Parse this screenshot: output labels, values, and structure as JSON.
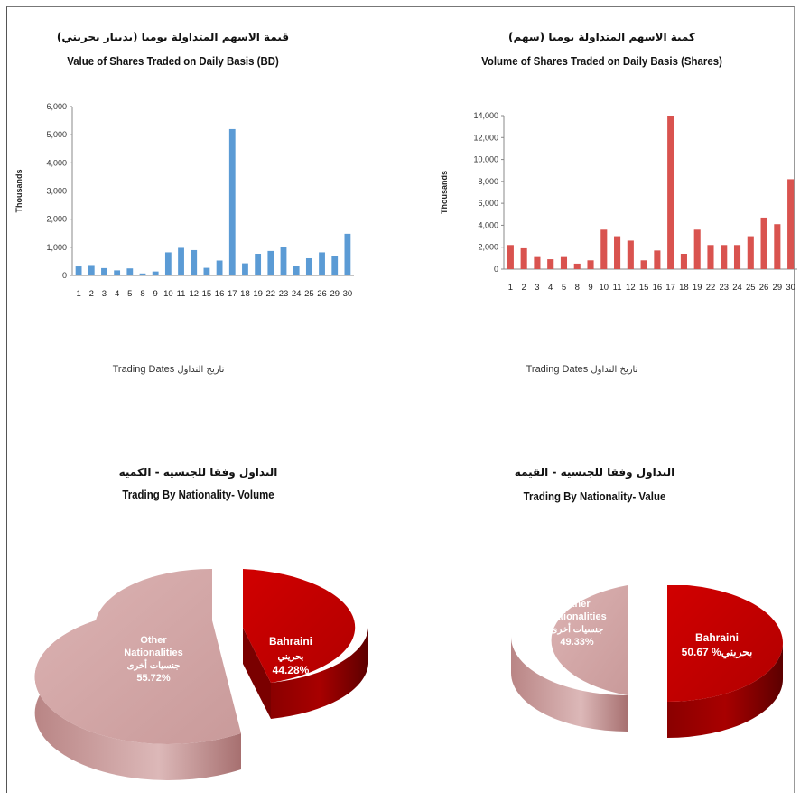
{
  "bar_value": {
    "title_ar": "قيمة الاسهم المتداولة يوميا (بدينار بحريني)",
    "title_en": "Value of Shares Traded on Daily Basis (BD)",
    "ylabel": "Thousands",
    "dates_label_en": "Trading Dates",
    "dates_label_ar": "تاريخ التداول",
    "color": "#5b9bd5"
  },
  "bar_volume": {
    "title_ar": "كمية الاسهم المتداولة يوميا (سهم)",
    "title_en": "Volume of Shares Traded on Daily Basis (Shares)",
    "ylabel": "Thousands",
    "dates_label_en": "Trading Dates",
    "dates_label_ar": "تاريخ التداول",
    "color": "#d9534f"
  },
  "pie_volume": {
    "title_ar": "التداول وفقا للجنسية - الكمية",
    "title_en": "Trading By Nationality- Volume",
    "bahraini_en": "Bahraini",
    "bahraini_ar": "بحريني",
    "bahraini_pct": "44.28%",
    "other_en_1": "Other",
    "other_en_2": "Nationalities",
    "other_ar": "جنسيات أخرى",
    "other_pct": "55.72%"
  },
  "pie_value": {
    "title_ar": "التداول وفقا للجنسية - القيمة",
    "title_en": "Trading By Nationality- Value",
    "bahraini_en": "Bahraini",
    "bahraini_line": "50.67 %بحريني",
    "other_en_1": "Other",
    "other_en_2": "Nationalities",
    "other_ar": "جنسيات أخرى",
    "other_pct": "49.33%"
  },
  "chart_data": [
    {
      "type": "bar",
      "title": "Value of Shares Traded on Daily Basis (BD)",
      "xlabel": "Trading Dates",
      "ylabel": "Thousands",
      "ylim": [
        0,
        6000
      ],
      "yticks": [
        "0",
        "1,000",
        "2,000",
        "3,000",
        "4,000",
        "5,000",
        "6,000"
      ],
      "categories": [
        "1",
        "2",
        "3",
        "4",
        "5",
        "8",
        "9",
        "10",
        "11",
        "12",
        "15",
        "16",
        "17",
        "18",
        "19",
        "22",
        "23",
        "24",
        "25",
        "26",
        "29",
        "30"
      ],
      "values": [
        320,
        370,
        260,
        180,
        250,
        70,
        140,
        820,
        980,
        900,
        270,
        530,
        5200,
        430,
        770,
        870,
        1000,
        330,
        610,
        820,
        680,
        1480
      ],
      "grid": false
    },
    {
      "type": "bar",
      "title": "Volume of Shares Traded on Daily Basis (Shares)",
      "xlabel": "Trading Dates",
      "ylabel": "Thousands",
      "ylim": [
        0,
        14000
      ],
      "yticks": [
        "0",
        "2,000",
        "4,000",
        "6,000",
        "8,000",
        "10,000",
        "12,000",
        "14,000"
      ],
      "categories": [
        "1",
        "2",
        "3",
        "4",
        "5",
        "8",
        "9",
        "10",
        "11",
        "12",
        "15",
        "16",
        "17",
        "18",
        "19",
        "22",
        "23",
        "24",
        "25",
        "26",
        "29",
        "30"
      ],
      "values": [
        2200,
        1900,
        1100,
        900,
        1100,
        500,
        800,
        3600,
        3000,
        2600,
        800,
        1700,
        14000,
        1400,
        3600,
        2200,
        2200,
        2200,
        3000,
        4700,
        4100,
        8200
      ],
      "grid": false
    },
    {
      "type": "pie",
      "title": "Trading By Nationality- Volume",
      "labels": [
        "Bahraini",
        "Other Nationalities"
      ],
      "values": [
        44.28,
        55.72
      ]
    },
    {
      "type": "pie",
      "title": "Trading By Nationality- Value",
      "labels": [
        "Bahraini",
        "Other Nationalities"
      ],
      "values": [
        50.67,
        49.33
      ]
    }
  ]
}
